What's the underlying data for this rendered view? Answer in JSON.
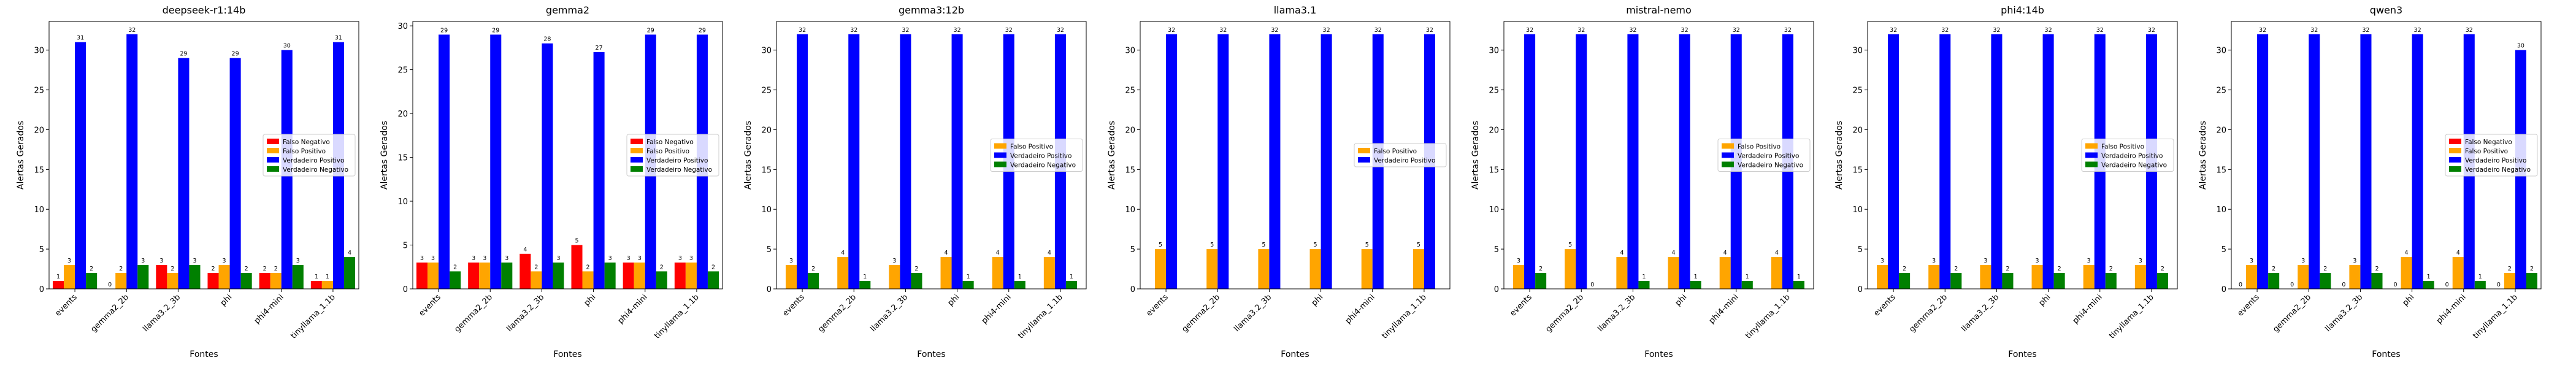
{
  "colors": {
    "Falso Negativo": "#ff0000",
    "Falso Positivo": "#ffa500",
    "Verdadeiro Positivo": "#0000ff",
    "Verdadeiro Negativo": "#008000"
  },
  "chart_data": [
    {
      "type": "bar",
      "title": "deepseek-r1:14b",
      "xlabel": "Fontes",
      "ylabel": "Alertas Gerados",
      "categories": [
        "events",
        "gemma2_2b",
        "llama3.2_3b",
        "phi",
        "phi4-mini",
        "tinyllama_1.1b"
      ],
      "ylim": [
        0,
        33.6
      ],
      "yticks": [
        0,
        5,
        10,
        15,
        20,
        25,
        30
      ],
      "legend_position": "center-right",
      "series": [
        {
          "name": "Falso Negativo",
          "values": [
            1,
            0,
            3,
            2,
            2,
            1
          ]
        },
        {
          "name": "Falso Positivo",
          "values": [
            3,
            2,
            2,
            3,
            2,
            1
          ]
        },
        {
          "name": "Verdadeiro Positivo",
          "values": [
            31,
            32,
            29,
            29,
            30,
            31
          ]
        },
        {
          "name": "Verdadeiro Negativo",
          "values": [
            2,
            3,
            3,
            2,
            3,
            4
          ]
        }
      ]
    },
    {
      "type": "bar",
      "title": "gemma2",
      "xlabel": "Fontes",
      "ylabel": "Alertas Gerados",
      "categories": [
        "events",
        "gemma2_2b",
        "llama3.2_3b",
        "phi",
        "phi4-mini",
        "tinyllama_1.1b"
      ],
      "ylim": [
        0,
        30.5
      ],
      "yticks": [
        0,
        5,
        10,
        15,
        20,
        25,
        30
      ],
      "legend_position": "center-right",
      "series": [
        {
          "name": "Falso Negativo",
          "values": [
            3,
            3,
            4,
            5,
            3,
            3
          ]
        },
        {
          "name": "Falso Positivo",
          "values": [
            3,
            3,
            2,
            2,
            3,
            3
          ]
        },
        {
          "name": "Verdadeiro Positivo",
          "values": [
            29,
            29,
            28,
            27,
            29,
            29
          ]
        },
        {
          "name": "Verdadeiro Negativo",
          "values": [
            2,
            3,
            3,
            3,
            2,
            2
          ]
        }
      ]
    },
    {
      "type": "bar",
      "title": "gemma3:12b",
      "xlabel": "Fontes",
      "ylabel": "Alertas Gerados",
      "categories": [
        "events",
        "gemma2_2b",
        "llama3.2_3b",
        "phi",
        "phi4-mini",
        "tinyllama_1.1b"
      ],
      "ylim": [
        0,
        33.6
      ],
      "yticks": [
        0,
        5,
        10,
        15,
        20,
        25,
        30
      ],
      "legend_position": "center-right",
      "series": [
        {
          "name": "Falso Positivo",
          "values": [
            3,
            4,
            3,
            4,
            4,
            4
          ]
        },
        {
          "name": "Verdadeiro Positivo",
          "values": [
            32,
            32,
            32,
            32,
            32,
            32
          ]
        },
        {
          "name": "Verdadeiro Negativo",
          "values": [
            2,
            1,
            2,
            1,
            1,
            1
          ]
        }
      ]
    },
    {
      "type": "bar",
      "title": "llama3.1",
      "xlabel": "Fontes",
      "ylabel": "Alertas Gerados",
      "categories": [
        "events",
        "gemma2_2b",
        "llama3.2_3b",
        "phi",
        "phi4-mini",
        "tinyllama_1.1b"
      ],
      "ylim": [
        0,
        33.6
      ],
      "yticks": [
        0,
        5,
        10,
        15,
        20,
        25,
        30
      ],
      "legend_position": "center-right",
      "series": [
        {
          "name": "Falso Positivo",
          "values": [
            5,
            5,
            5,
            5,
            5,
            5
          ]
        },
        {
          "name": "Verdadeiro Positivo",
          "values": [
            32,
            32,
            32,
            32,
            32,
            32
          ]
        }
      ]
    },
    {
      "type": "bar",
      "title": "mistral-nemo",
      "xlabel": "Fontes",
      "ylabel": "Alertas Gerados",
      "categories": [
        "events",
        "gemma2_2b",
        "llama3.2_3b",
        "phi",
        "phi4-mini",
        "tinyllama_1.1b"
      ],
      "ylim": [
        0,
        33.6
      ],
      "yticks": [
        0,
        5,
        10,
        15,
        20,
        25,
        30
      ],
      "legend_position": "center-right",
      "series": [
        {
          "name": "Falso Positivo",
          "values": [
            3,
            5,
            4,
            4,
            4,
            4
          ]
        },
        {
          "name": "Verdadeiro Positivo",
          "values": [
            32,
            32,
            32,
            32,
            32,
            32
          ]
        },
        {
          "name": "Verdadeiro Negativo",
          "values": [
            2,
            0,
            1,
            1,
            1,
            1
          ]
        }
      ]
    },
    {
      "type": "bar",
      "title": "phi4:14b",
      "xlabel": "Fontes",
      "ylabel": "Alertas Gerados",
      "categories": [
        "events",
        "gemma2_2b",
        "llama3.2_3b",
        "phi",
        "phi4-mini",
        "tinyllama_1.1b"
      ],
      "ylim": [
        0,
        33.6
      ],
      "yticks": [
        0,
        5,
        10,
        15,
        20,
        25,
        30
      ],
      "legend_position": "center-right",
      "series": [
        {
          "name": "Falso Positivo",
          "values": [
            3,
            3,
            3,
            3,
            3,
            3
          ]
        },
        {
          "name": "Verdadeiro Positivo",
          "values": [
            32,
            32,
            32,
            32,
            32,
            32
          ]
        },
        {
          "name": "Verdadeiro Negativo",
          "values": [
            2,
            2,
            2,
            2,
            2,
            2
          ]
        }
      ]
    },
    {
      "type": "bar",
      "title": "qwen3",
      "xlabel": "Fontes",
      "ylabel": "Alertas Gerados",
      "categories": [
        "events",
        "gemma2_2b",
        "llama3.2_3b",
        "phi",
        "phi4-mini",
        "tinyllama_1.1b"
      ],
      "ylim": [
        0,
        33.6
      ],
      "yticks": [
        0,
        5,
        10,
        15,
        20,
        25,
        30
      ],
      "legend_position": "center-right",
      "series": [
        {
          "name": "Falso Negativo",
          "values": [
            0,
            0,
            0,
            0,
            0,
            0
          ]
        },
        {
          "name": "Falso Positivo",
          "values": [
            3,
            3,
            3,
            4,
            4,
            2
          ]
        },
        {
          "name": "Verdadeiro Positivo",
          "values": [
            32,
            32,
            32,
            32,
            32,
            30
          ]
        },
        {
          "name": "Verdadeiro Negativo",
          "values": [
            2,
            2,
            2,
            1,
            1,
            2
          ]
        }
      ]
    }
  ]
}
